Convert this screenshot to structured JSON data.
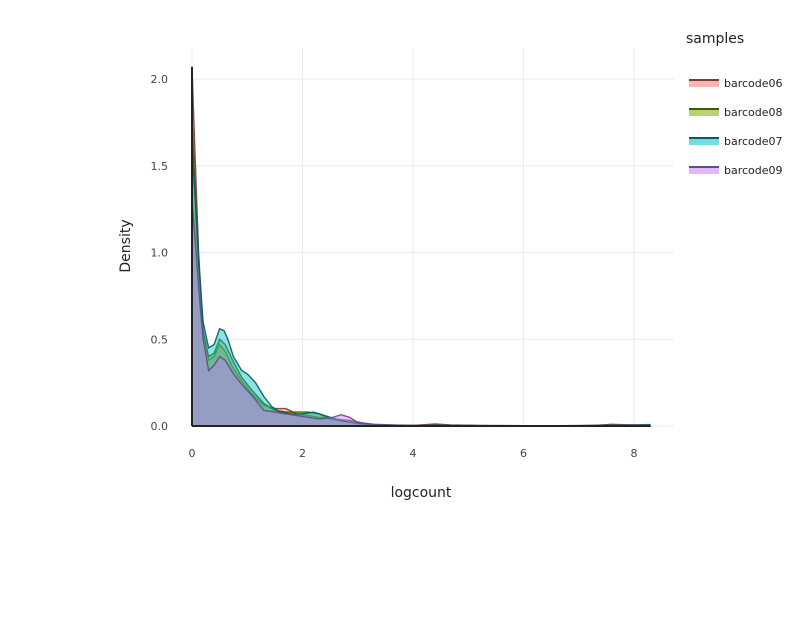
{
  "chart_data": {
    "type": "area",
    "subtype": "density",
    "title": "",
    "xlabel": "logcount",
    "ylabel": "Density",
    "xlim": [
      0,
      8.3
    ],
    "ylim": [
      0,
      2.1
    ],
    "x_ticks": [
      0,
      2,
      4,
      6,
      8
    ],
    "y_ticks": [
      0.0,
      0.5,
      1.0,
      1.5,
      2.0
    ],
    "y_tick_labels": [
      "0.0",
      "0.5",
      "1.0",
      "1.5",
      "2.0"
    ],
    "grid": true,
    "legend": {
      "title": "samples",
      "position": "right"
    },
    "series": [
      {
        "name": "barcode06",
        "fill": "#F8766D",
        "line": "#7a3b36",
        "points": [
          [
            0,
            2.07
          ],
          [
            0.05,
            1.6
          ],
          [
            0.12,
            1.0
          ],
          [
            0.2,
            0.55
          ],
          [
            0.3,
            0.38
          ],
          [
            0.4,
            0.4
          ],
          [
            0.5,
            0.47
          ],
          [
            0.6,
            0.43
          ],
          [
            0.75,
            0.33
          ],
          [
            0.9,
            0.26
          ],
          [
            1.1,
            0.18
          ],
          [
            1.3,
            0.12
          ],
          [
            1.5,
            0.1
          ],
          [
            1.7,
            0.1
          ],
          [
            1.9,
            0.07
          ],
          [
            2.1,
            0.06
          ],
          [
            2.3,
            0.05
          ],
          [
            2.6,
            0.04
          ],
          [
            2.9,
            0.03
          ],
          [
            3.2,
            0.01
          ],
          [
            3.6,
            0.005
          ],
          [
            4.0,
            0.003
          ],
          [
            4.4,
            0.012
          ],
          [
            4.7,
            0.005
          ],
          [
            5.2,
            0.003
          ],
          [
            6.0,
            0.002
          ],
          [
            7.2,
            0.002
          ],
          [
            7.6,
            0.01
          ],
          [
            8.0,
            0.005
          ],
          [
            8.3,
            0.0
          ]
        ]
      },
      {
        "name": "barcode08",
        "fill": "#7CAE00",
        "line": "#3e5700",
        "points": [
          [
            0,
            1.78
          ],
          [
            0.05,
            1.4
          ],
          [
            0.12,
            0.95
          ],
          [
            0.2,
            0.55
          ],
          [
            0.3,
            0.4
          ],
          [
            0.4,
            0.42
          ],
          [
            0.5,
            0.5
          ],
          [
            0.6,
            0.47
          ],
          [
            0.75,
            0.37
          ],
          [
            0.9,
            0.28
          ],
          [
            1.1,
            0.2
          ],
          [
            1.3,
            0.13
          ],
          [
            1.5,
            0.09
          ],
          [
            1.7,
            0.08
          ],
          [
            1.9,
            0.08
          ],
          [
            2.1,
            0.08
          ],
          [
            2.3,
            0.07
          ],
          [
            2.5,
            0.04
          ],
          [
            2.8,
            0.025
          ],
          [
            3.1,
            0.01
          ],
          [
            3.5,
            0.005
          ],
          [
            4.0,
            0.002
          ],
          [
            4.5,
            0.006
          ],
          [
            5.0,
            0.002
          ],
          [
            6.0,
            0.0
          ],
          [
            7.5,
            0.003
          ],
          [
            8.0,
            0.003
          ],
          [
            8.3,
            0.0
          ]
        ]
      },
      {
        "name": "barcode07",
        "fill": "#00BFC4",
        "line": "#005f62",
        "points": [
          [
            0,
            1.6
          ],
          [
            0.05,
            1.35
          ],
          [
            0.12,
            0.95
          ],
          [
            0.2,
            0.6
          ],
          [
            0.3,
            0.45
          ],
          [
            0.4,
            0.47
          ],
          [
            0.5,
            0.56
          ],
          [
            0.58,
            0.55
          ],
          [
            0.65,
            0.5
          ],
          [
            0.75,
            0.4
          ],
          [
            0.9,
            0.32
          ],
          [
            1.0,
            0.3
          ],
          [
            1.15,
            0.25
          ],
          [
            1.3,
            0.17
          ],
          [
            1.45,
            0.11
          ],
          [
            1.6,
            0.08
          ],
          [
            1.8,
            0.07
          ],
          [
            2.0,
            0.07
          ],
          [
            2.2,
            0.08
          ],
          [
            2.4,
            0.06
          ],
          [
            2.7,
            0.03
          ],
          [
            3.0,
            0.015
          ],
          [
            3.4,
            0.005
          ],
          [
            4.0,
            0.002
          ],
          [
            4.8,
            0.005
          ],
          [
            5.2,
            0.002
          ],
          [
            6.0,
            0.0
          ],
          [
            7.6,
            0.004
          ],
          [
            8.3,
            0.008
          ]
        ]
      },
      {
        "name": "barcode09",
        "fill": "#C77CFF",
        "line": "#634c7f",
        "points": [
          [
            0,
            1.3
          ],
          [
            0.05,
            1.1
          ],
          [
            0.12,
            0.8
          ],
          [
            0.2,
            0.5
          ],
          [
            0.3,
            0.32
          ],
          [
            0.4,
            0.35
          ],
          [
            0.5,
            0.4
          ],
          [
            0.6,
            0.38
          ],
          [
            0.75,
            0.3
          ],
          [
            0.9,
            0.24
          ],
          [
            1.1,
            0.17
          ],
          [
            1.3,
            0.09
          ],
          [
            1.5,
            0.08
          ],
          [
            1.7,
            0.07
          ],
          [
            1.9,
            0.06
          ],
          [
            2.1,
            0.05
          ],
          [
            2.3,
            0.04
          ],
          [
            2.55,
            0.05
          ],
          [
            2.7,
            0.065
          ],
          [
            2.85,
            0.05
          ],
          [
            3.0,
            0.02
          ],
          [
            3.3,
            0.01
          ],
          [
            3.7,
            0.005
          ],
          [
            4.2,
            0.003
          ],
          [
            4.6,
            0.004
          ],
          [
            5.5,
            0.002
          ],
          [
            6.5,
            0.0
          ],
          [
            7.5,
            0.003
          ],
          [
            8.3,
            0.004
          ]
        ]
      }
    ],
    "overlap_fill": "#8E9AC8"
  }
}
